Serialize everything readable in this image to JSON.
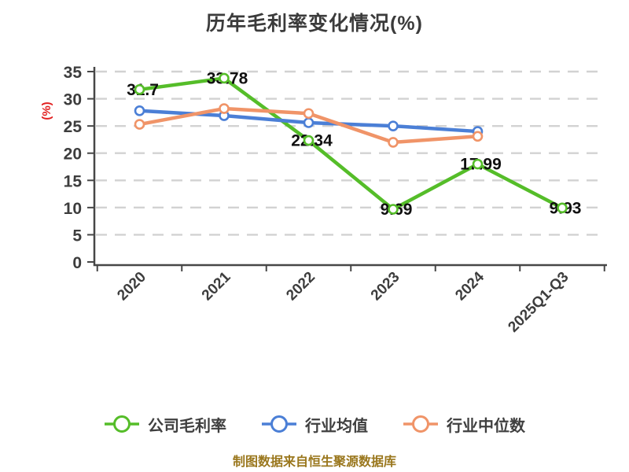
{
  "caption": {
    "text": "制图数据来自恒生聚源数据库",
    "color": "#9a771d"
  },
  "chart_data": {
    "type": "line",
    "title": "历年毛利率变化情况(%)",
    "title_color": "#3b3b3b",
    "ylabel": "(%)",
    "ylabel_color": "#e22020",
    "categories": [
      "2020",
      "2021",
      "2022",
      "2023",
      "2024",
      "2025Q1-Q3"
    ],
    "series": [
      {
        "name": "公司毛利率",
        "color": "#55bd29",
        "values": [
          31.7,
          33.78,
          22.34,
          9.69,
          17.99,
          9.93
        ],
        "value_labels": [
          "31.7",
          "33.78",
          "22.34",
          "9.69",
          "17.99",
          "9.93"
        ]
      },
      {
        "name": "行业均值",
        "color": "#4b7fd6",
        "values": [
          27.8,
          26.9,
          25.6,
          25.0,
          24.0
        ]
      },
      {
        "name": "行业中位数",
        "color": "#f09468",
        "values": [
          25.3,
          28.2,
          27.3,
          22.0,
          23.1
        ]
      }
    ],
    "ylim": [
      0,
      35
    ],
    "yticks": [
      0,
      5,
      10,
      15,
      20,
      25,
      30,
      35
    ],
    "grid": true,
    "grid_color": "#d2d2d2",
    "axis_color": "#474747",
    "tick_label_color": "#3d3d3d",
    "value_label_color": "#101010",
    "legend_position": "bottom",
    "legend_text_color": "#3f3f3f"
  }
}
